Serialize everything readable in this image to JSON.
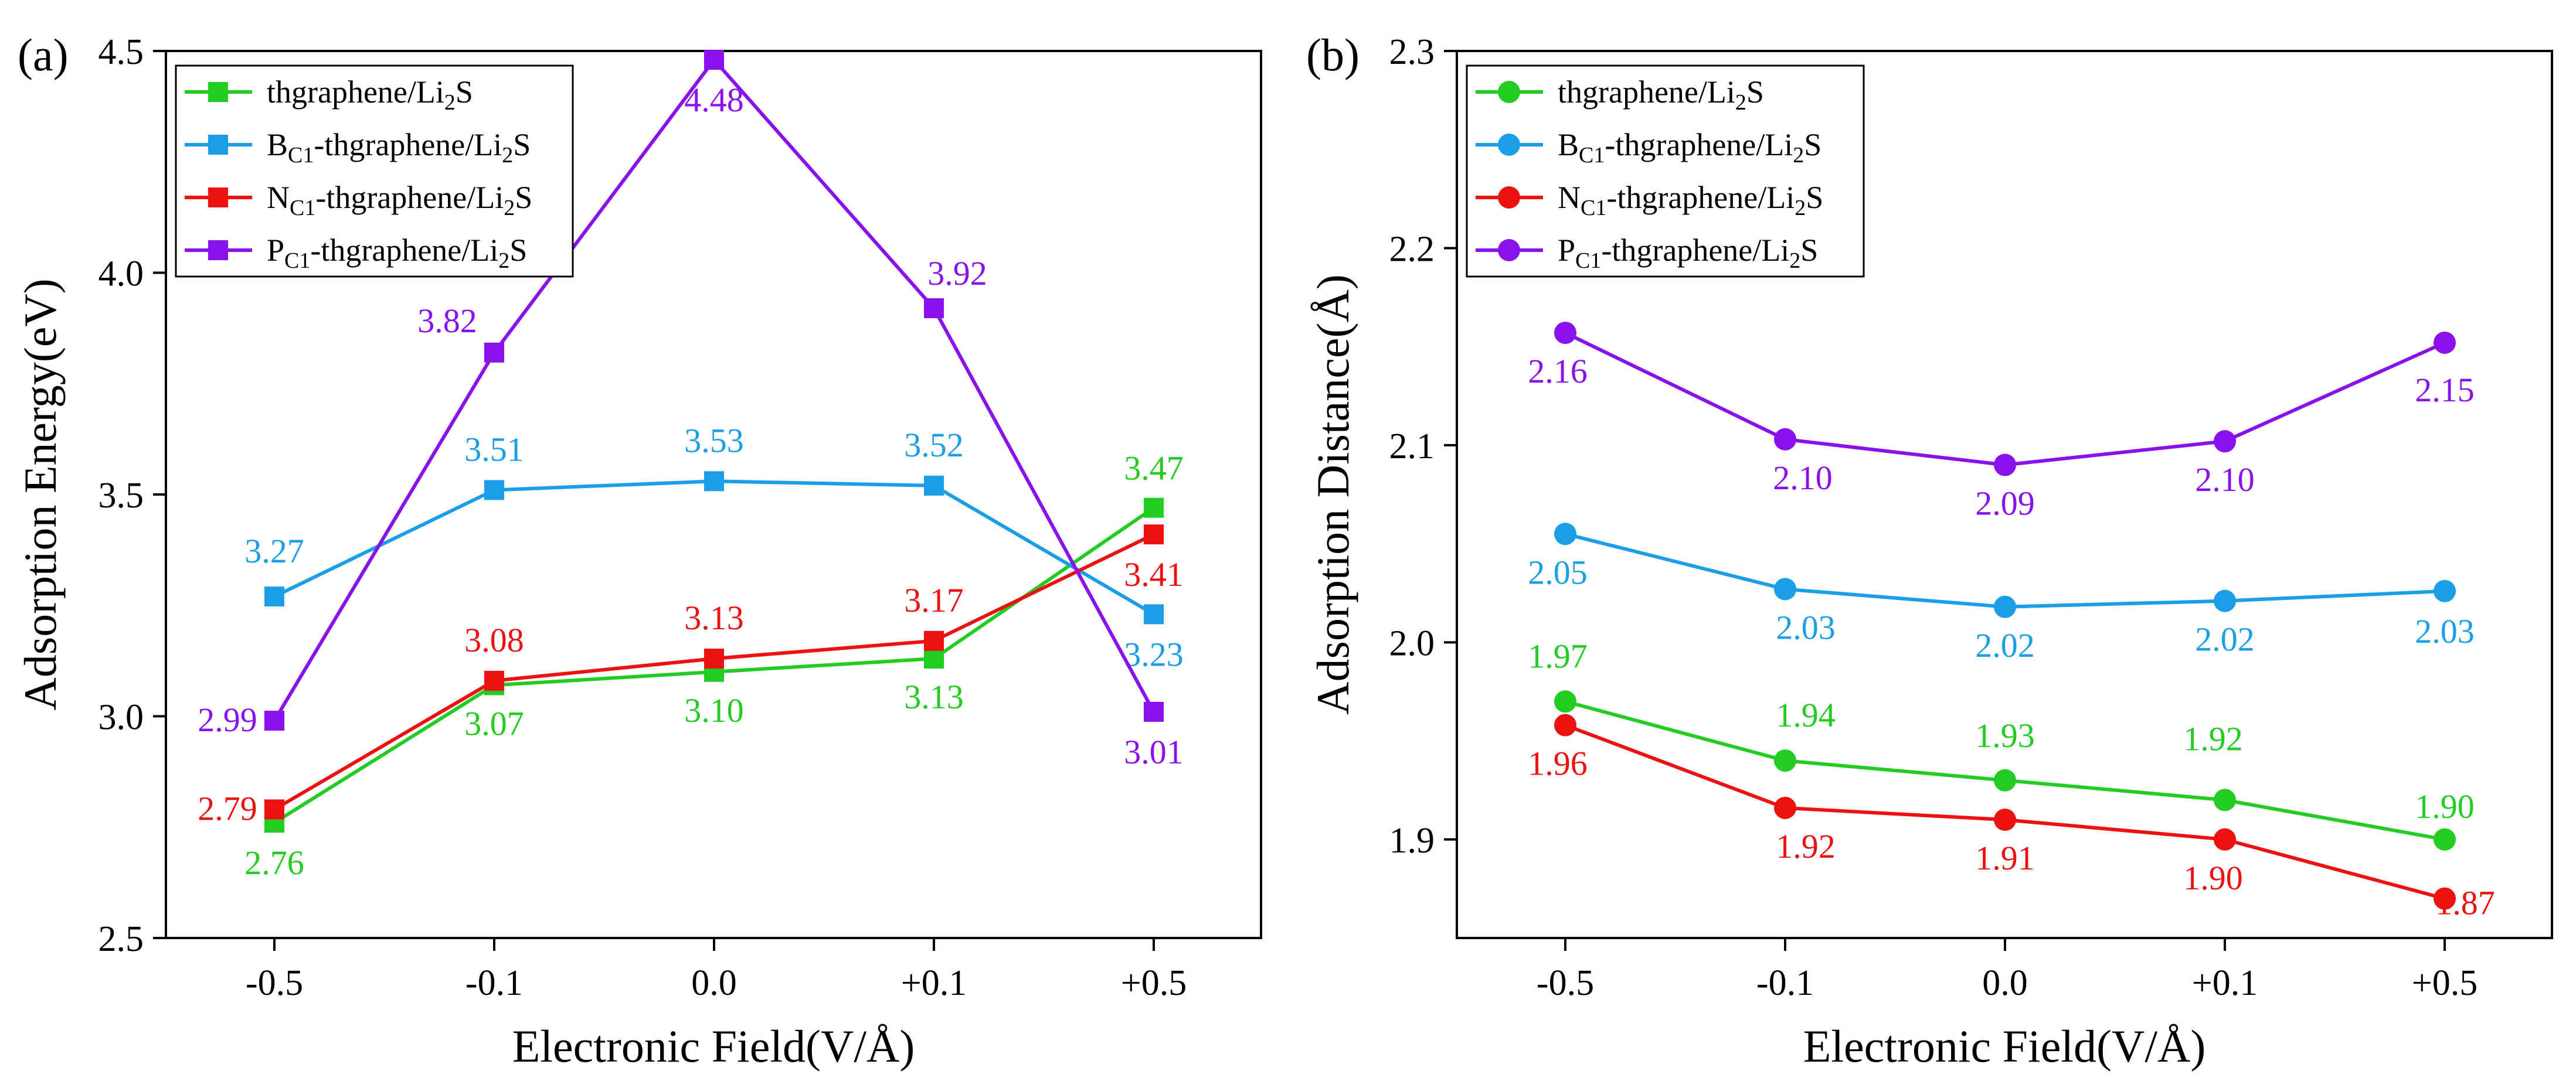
{
  "chart_data": [
    {
      "type": "line",
      "panel_label": "(a)",
      "categories": [
        "-0.5",
        "-0.1",
        "0.0",
        "+0.1",
        "+0.5"
      ],
      "xlabel": "Electronic Field(V/Å)",
      "ylabel": "Adsorption Energy(eV)",
      "ylim": [
        2.5,
        4.5
      ],
      "yticks": [
        "2.5",
        "3.0",
        "3.5",
        "4.0",
        "4.5"
      ],
      "marker": "square",
      "legend_position": "top-left",
      "series": [
        {
          "name": "thgraphene/Li2S",
          "name_parts": [
            "thgraphene/Li",
            "2",
            "S"
          ],
          "prefix": "",
          "sub": "",
          "color": "#22cc22",
          "values": [
            2.76,
            3.07,
            3.1,
            3.13,
            3.47
          ],
          "labels": [
            "2.76",
            "3.07",
            "3.10",
            "3.13",
            "3.47"
          ]
        },
        {
          "name": "BC1-thgraphene/Li2S",
          "prefix": "B",
          "sub": "C1",
          "color": "#1a9ee8",
          "values": [
            3.27,
            3.51,
            3.53,
            3.52,
            3.23
          ],
          "labels": [
            "3.27",
            "3.51",
            "3.53",
            "3.52",
            "3.23"
          ]
        },
        {
          "name": "NC1-thgraphene/Li2S",
          "prefix": "N",
          "sub": "C1",
          "color": "#ee1111",
          "values": [
            2.79,
            3.08,
            3.13,
            3.17,
            3.41
          ],
          "labels": [
            "2.79",
            "3.08",
            "3.13",
            "3.17",
            "3.41"
          ]
        },
        {
          "name": "PC1-thgraphene/Li2S",
          "prefix": "P",
          "sub": "C1",
          "color": "#8811ee",
          "values": [
            2.99,
            3.82,
            4.48,
            3.92,
            3.01
          ],
          "labels": [
            "2.99",
            "3.82",
            "4.48",
            "3.92",
            "3.01"
          ]
        }
      ]
    },
    {
      "type": "line",
      "panel_label": "(b)",
      "categories": [
        "-0.5",
        "-0.1",
        "0.0",
        "+0.1",
        "+0.5"
      ],
      "xlabel": "Electronic Field(V/Å)",
      "ylabel": "Adsorption Distance(Å)",
      "ylim": [
        1.85,
        2.3
      ],
      "yticks": [
        "1.9",
        "2.0",
        "2.1",
        "2.2",
        "2.3"
      ],
      "marker": "circle",
      "legend_position": "top-left",
      "series": [
        {
          "name": "thgraphene/Li2S",
          "name_parts": [
            "thgraphene/Li",
            "2",
            "S"
          ],
          "prefix": "",
          "sub": "",
          "color": "#22cc22",
          "values": [
            1.97,
            1.94,
            1.93,
            1.92,
            1.9
          ],
          "labels": [
            "1.97",
            "1.94",
            "1.93",
            "1.92",
            "1.90"
          ]
        },
        {
          "name": "BC1-thgraphene/Li2S",
          "prefix": "B",
          "sub": "C1",
          "color": "#1a9ee8",
          "values": [
            2.055,
            2.027,
            2.018,
            2.021,
            2.026
          ],
          "labels": [
            "2.05",
            "2.03",
            "2.02",
            "2.02",
            "2.03"
          ]
        },
        {
          "name": "NC1-thgraphene/Li2S",
          "prefix": "N",
          "sub": "C1",
          "color": "#ee1111",
          "values": [
            1.958,
            1.916,
            1.91,
            1.9,
            1.87
          ],
          "labels": [
            "1.96",
            "1.92",
            "1.91",
            "1.90",
            "1.87"
          ]
        },
        {
          "name": "PC1-thgraphene/Li2S",
          "prefix": "P",
          "sub": "C1",
          "color": "#8811ee",
          "values": [
            2.157,
            2.103,
            2.09,
            2.102,
            2.152
          ],
          "labels": [
            "2.16",
            "2.10",
            "2.09",
            "2.10",
            "2.15"
          ]
        }
      ]
    }
  ],
  "legend_common": {
    "body": "-thgraphene/Li",
    "sub2": "2",
    "tail": "S"
  }
}
